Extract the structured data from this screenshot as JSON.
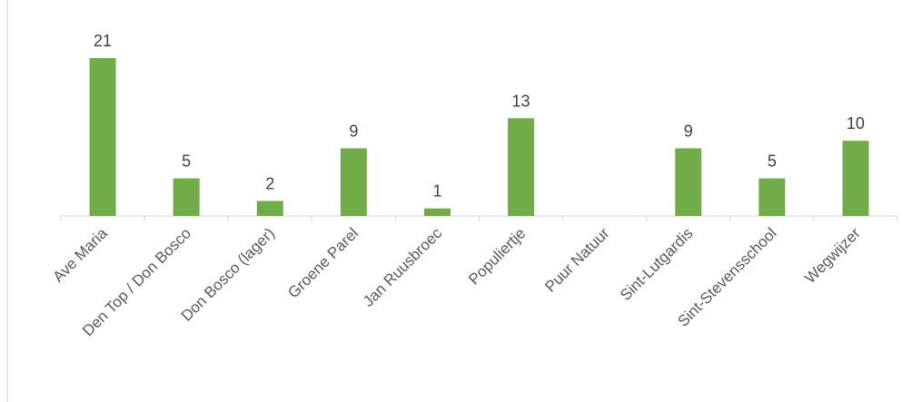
{
  "chart_data": {
    "type": "bar",
    "title": "",
    "xlabel": "",
    "ylabel": "",
    "categories": [
      "Ave Maria",
      "Den Top / Don Bosco",
      "Don Bosco (lager)",
      "Groene Parel",
      "Jan Ruusbroec",
      "Populiertje",
      "Puur Natuur",
      "Sint-Lutgardis",
      "Sint-Stevensschool",
      "Wegwijzer"
    ],
    "values": [
      21,
      5,
      2,
      9,
      1,
      13,
      0,
      9,
      5,
      10
    ],
    "data_labels": [
      "21",
      "5",
      "2",
      "9",
      "1",
      "13",
      "",
      "9",
      "5",
      "10"
    ],
    "ylim": [
      0,
      21
    ],
    "grid": false,
    "legend": "none",
    "colors": {
      "bar": "#70ad47",
      "axis": "#d4d4d4",
      "label": "#404040",
      "category_text": "#595959"
    }
  }
}
